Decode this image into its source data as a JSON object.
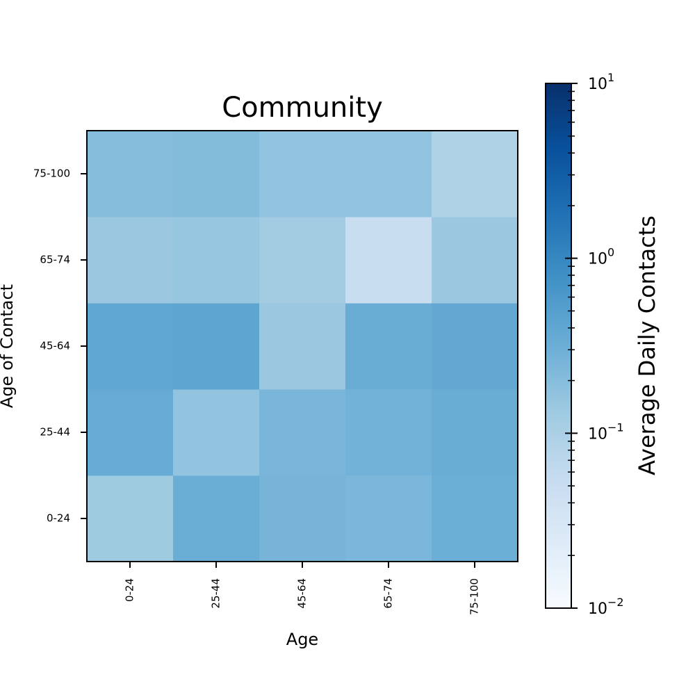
{
  "chart_data": {
    "type": "heatmap",
    "title": "Community",
    "xlabel": "Age",
    "ylabel": "Age of Contact",
    "x_categories": [
      "0-24",
      "25-44",
      "45-64",
      "65-74",
      "75-100"
    ],
    "y_categories": [
      "0-24",
      "25-44",
      "45-64",
      "65-74",
      "75-100"
    ],
    "values": [
      [
        0.13,
        0.32,
        0.26,
        0.24,
        0.31
      ],
      [
        0.35,
        0.16,
        0.25,
        0.28,
        0.33
      ],
      [
        0.4,
        0.42,
        0.14,
        0.33,
        0.38
      ],
      [
        0.14,
        0.15,
        0.12,
        0.05,
        0.14
      ],
      [
        0.2,
        0.21,
        0.16,
        0.16,
        0.09
      ]
    ],
    "colorbar": {
      "label": "Average Daily Contacts",
      "scale": "log",
      "range": [
        0.01,
        10
      ],
      "colormap": "Blues",
      "ticks": [
        {
          "value": 0.01,
          "base": "10",
          "exp": "−2"
        },
        {
          "value": 0.1,
          "base": "10",
          "exp": "−1"
        },
        {
          "value": 1,
          "base": "10",
          "exp": "0"
        },
        {
          "value": 10,
          "base": "10",
          "exp": "1"
        }
      ]
    }
  }
}
